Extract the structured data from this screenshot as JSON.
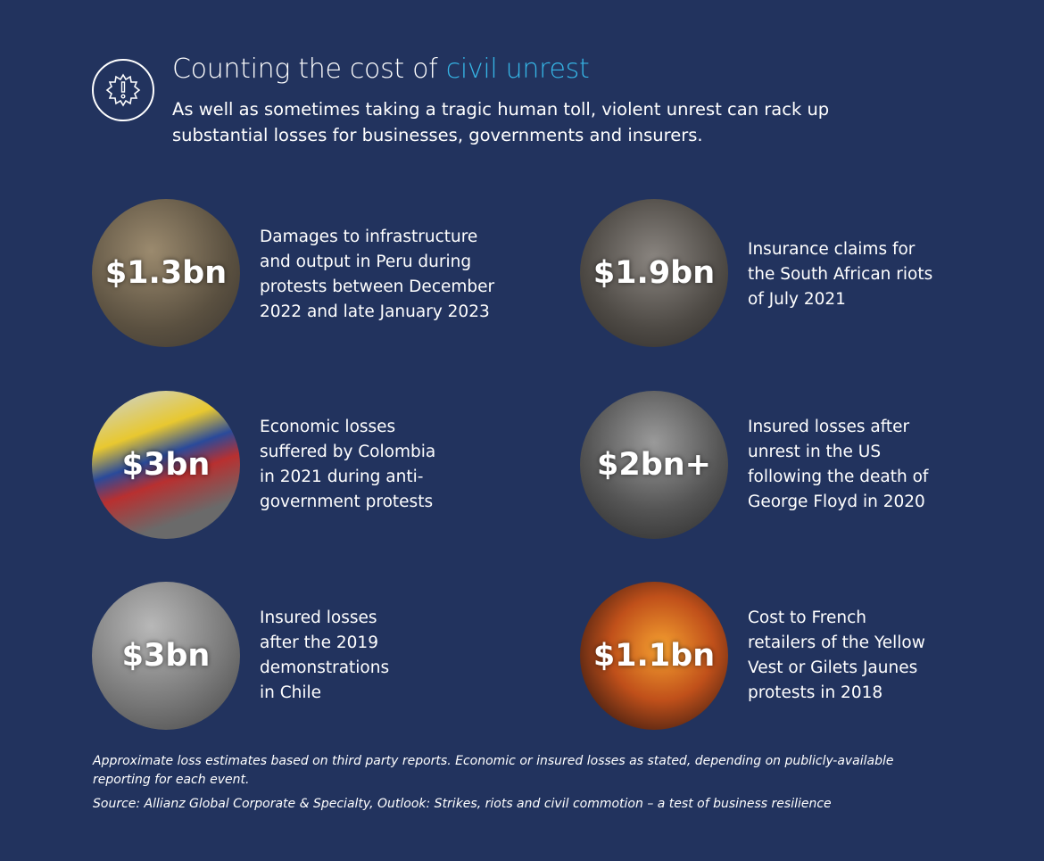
{
  "header": {
    "title_prefix": "Counting the cost of ",
    "title_accent": "civil unrest",
    "subtitle": "As well as sometimes taking a tragic human toll, violent unrest can rack up substantial losses for businesses, governments and insurers.",
    "icon": "alert-badge-icon"
  },
  "colors": {
    "background": "#22335e",
    "accent": "#36b5e6"
  },
  "items": [
    {
      "amount": "$1.3bn",
      "description": "Damages to infrastructure and output in Peru during protests between December 2022 and late January 2023"
    },
    {
      "amount": "$1.9bn",
      "description": "Insurance claims for the South African riots of July 2021"
    },
    {
      "amount": "$3bn",
      "description": "Economic losses suffered by Colombia in 2021 during anti-government protests"
    },
    {
      "amount": "$2bn+",
      "description": "Insured losses after unrest in the US following the death of George Floyd in 2020"
    },
    {
      "amount": "$3bn",
      "description": "Insured losses after the 2019 demonstrations in Chile"
    },
    {
      "amount": "$1.1bn",
      "description": "Cost to French retailers of the Yellow Vest or Gilets Jaunes protests in 2018"
    }
  ],
  "footer": {
    "note": "Approximate loss estimates based on third party reports. Economic or insured losses as stated, depending on publicly-available reporting for each event.",
    "source": "Source: Allianz Global Corporate & Specialty, Outlook: Strikes, riots and civil commotion – a test of business resilience"
  }
}
